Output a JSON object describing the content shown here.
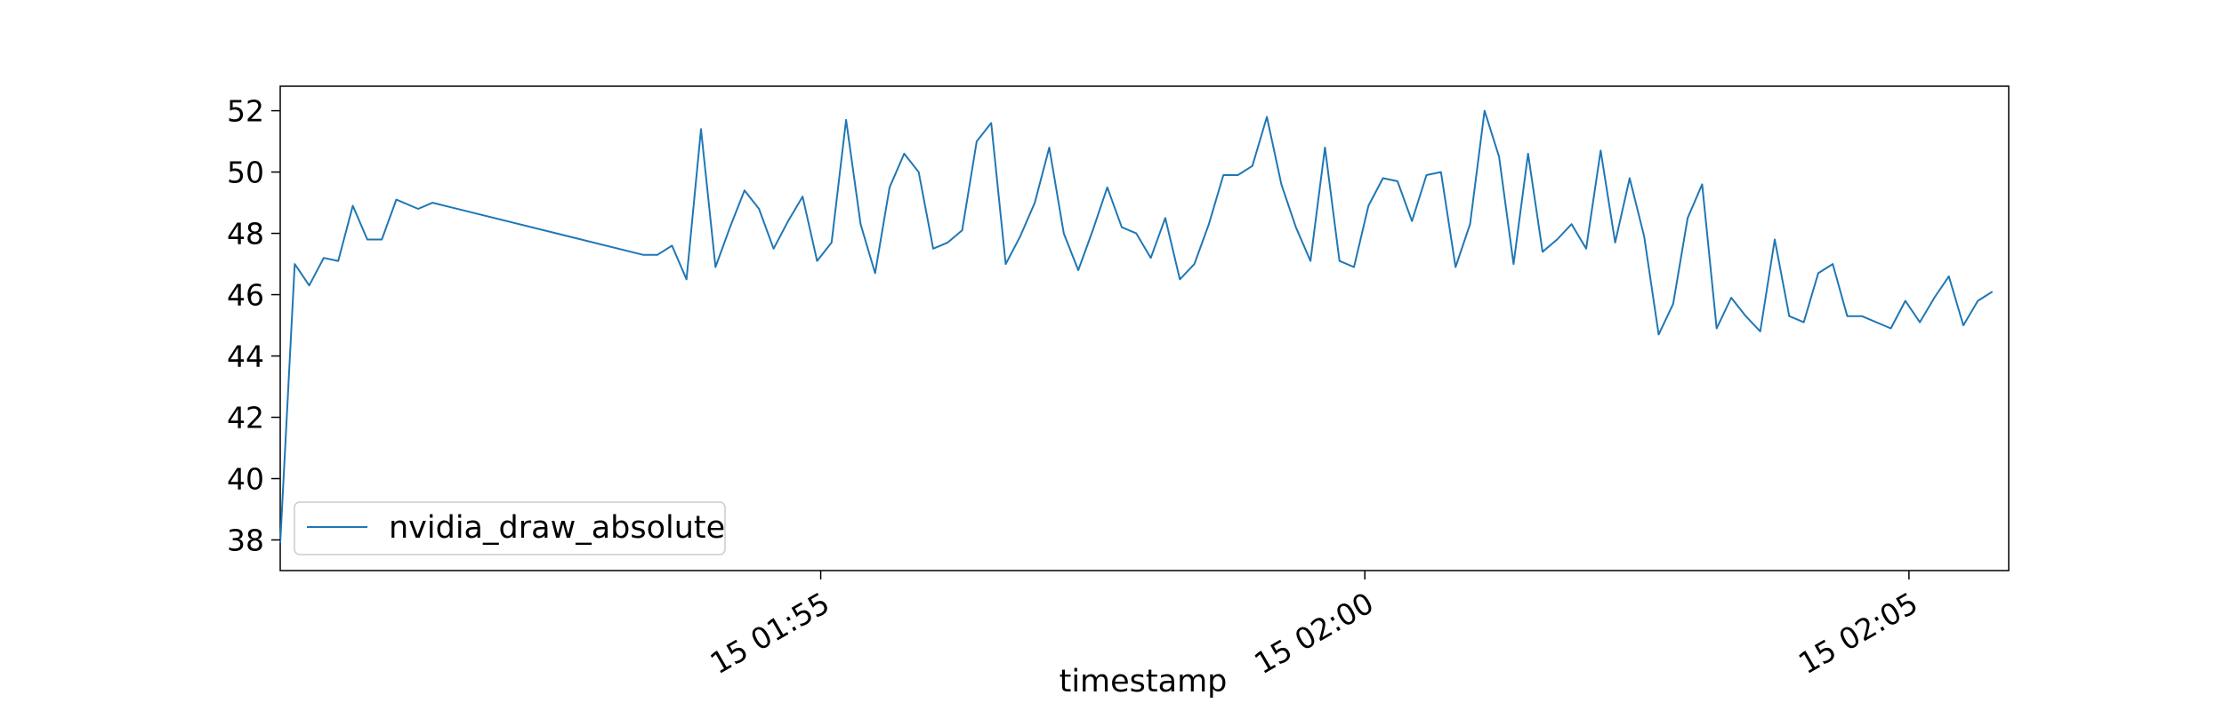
{
  "chart_data": {
    "type": "line",
    "title": "",
    "xlabel": "timestamp",
    "ylabel": "",
    "x_axis_type": "time",
    "xlim": [
      "01:50:02",
      "02:05:55"
    ],
    "ylim": [
      37.0,
      52.8
    ],
    "x_ticks": [
      {
        "time": "01:55:00",
        "label": "15 01:55"
      },
      {
        "time": "02:00:00",
        "label": "15 02:00"
      },
      {
        "time": "02:05:00",
        "label": "15 02:05"
      }
    ],
    "y_ticks": [
      38,
      40,
      42,
      44,
      46,
      48,
      50,
      52
    ],
    "grid": false,
    "legend": {
      "position": "lower-left"
    },
    "series": [
      {
        "name": "nvidia_draw_absolute",
        "color": "#1f77b4",
        "points": [
          [
            "01:50:02",
            37.9
          ],
          [
            "01:50:10",
            47.0
          ],
          [
            "01:50:18",
            46.3
          ],
          [
            "01:50:26",
            47.2
          ],
          [
            "01:50:34",
            47.1
          ],
          [
            "01:50:42",
            48.9
          ],
          [
            "01:50:50",
            47.8
          ],
          [
            "01:50:58",
            47.8
          ],
          [
            "01:51:06",
            49.1
          ],
          [
            "01:51:18",
            48.8
          ],
          [
            "01:51:26",
            49.0
          ],
          [
            "01:53:22",
            47.3
          ],
          [
            "01:53:30",
            47.3
          ],
          [
            "01:53:38",
            47.6
          ],
          [
            "01:53:46",
            46.5
          ],
          [
            "01:53:54",
            51.4
          ],
          [
            "01:54:02",
            46.9
          ],
          [
            "01:54:10",
            48.2
          ],
          [
            "01:54:18",
            49.4
          ],
          [
            "01:54:26",
            48.8
          ],
          [
            "01:54:34",
            47.5
          ],
          [
            "01:54:42",
            48.4
          ],
          [
            "01:54:50",
            49.2
          ],
          [
            "01:54:58",
            47.1
          ],
          [
            "01:55:06",
            47.7
          ],
          [
            "01:55:14",
            51.7
          ],
          [
            "01:55:22",
            48.3
          ],
          [
            "01:55:30",
            46.7
          ],
          [
            "01:55:38",
            49.5
          ],
          [
            "01:55:46",
            50.6
          ],
          [
            "01:55:54",
            50.0
          ],
          [
            "01:56:02",
            47.5
          ],
          [
            "01:56:10",
            47.7
          ],
          [
            "01:56:18",
            48.1
          ],
          [
            "01:56:26",
            51.0
          ],
          [
            "01:56:34",
            51.6
          ],
          [
            "01:56:42",
            47.0
          ],
          [
            "01:56:50",
            47.9
          ],
          [
            "01:56:58",
            49.0
          ],
          [
            "01:57:06",
            50.8
          ],
          [
            "01:57:14",
            48.0
          ],
          [
            "01:57:22",
            46.8
          ],
          [
            "01:57:30",
            48.1
          ],
          [
            "01:57:38",
            49.5
          ],
          [
            "01:57:46",
            48.2
          ],
          [
            "01:57:54",
            48.0
          ],
          [
            "01:58:02",
            47.2
          ],
          [
            "01:58:10",
            48.5
          ],
          [
            "01:58:18",
            46.5
          ],
          [
            "01:58:26",
            47.0
          ],
          [
            "01:58:34",
            48.3
          ],
          [
            "01:58:42",
            49.9
          ],
          [
            "01:58:50",
            49.9
          ],
          [
            "01:58:58",
            50.2
          ],
          [
            "01:59:06",
            51.8
          ],
          [
            "01:59:14",
            49.6
          ],
          [
            "01:59:22",
            48.2
          ],
          [
            "01:59:30",
            47.1
          ],
          [
            "01:59:38",
            50.8
          ],
          [
            "01:59:46",
            47.1
          ],
          [
            "01:59:54",
            46.9
          ],
          [
            "02:00:02",
            48.9
          ],
          [
            "02:00:10",
            49.8
          ],
          [
            "02:00:18",
            49.7
          ],
          [
            "02:00:26",
            48.4
          ],
          [
            "02:00:34",
            49.9
          ],
          [
            "02:00:42",
            50.0
          ],
          [
            "02:00:50",
            46.9
          ],
          [
            "02:00:58",
            48.3
          ],
          [
            "02:01:06",
            52.0
          ],
          [
            "02:01:14",
            50.5
          ],
          [
            "02:01:22",
            47.0
          ],
          [
            "02:01:30",
            50.6
          ],
          [
            "02:01:38",
            47.4
          ],
          [
            "02:01:46",
            47.8
          ],
          [
            "02:01:54",
            48.3
          ],
          [
            "02:02:02",
            47.5
          ],
          [
            "02:02:10",
            50.7
          ],
          [
            "02:02:18",
            47.7
          ],
          [
            "02:02:26",
            49.8
          ],
          [
            "02:02:34",
            47.9
          ],
          [
            "02:02:42",
            44.7
          ],
          [
            "02:02:50",
            45.7
          ],
          [
            "02:02:58",
            48.5
          ],
          [
            "02:03:06",
            49.6
          ],
          [
            "02:03:14",
            44.9
          ],
          [
            "02:03:22",
            45.9
          ],
          [
            "02:03:30",
            45.3
          ],
          [
            "02:03:38",
            44.8
          ],
          [
            "02:03:46",
            47.8
          ],
          [
            "02:03:54",
            45.3
          ],
          [
            "02:04:02",
            45.1
          ],
          [
            "02:04:10",
            46.7
          ],
          [
            "02:04:18",
            47.0
          ],
          [
            "02:04:26",
            45.3
          ],
          [
            "02:04:34",
            45.3
          ],
          [
            "02:04:50",
            44.9
          ],
          [
            "02:04:58",
            45.8
          ],
          [
            "02:05:06",
            45.1
          ],
          [
            "02:05:14",
            45.9
          ],
          [
            "02:05:22",
            46.6
          ],
          [
            "02:05:30",
            45.0
          ],
          [
            "02:05:38",
            45.8
          ],
          [
            "02:05:46",
            46.1
          ]
        ]
      }
    ]
  }
}
